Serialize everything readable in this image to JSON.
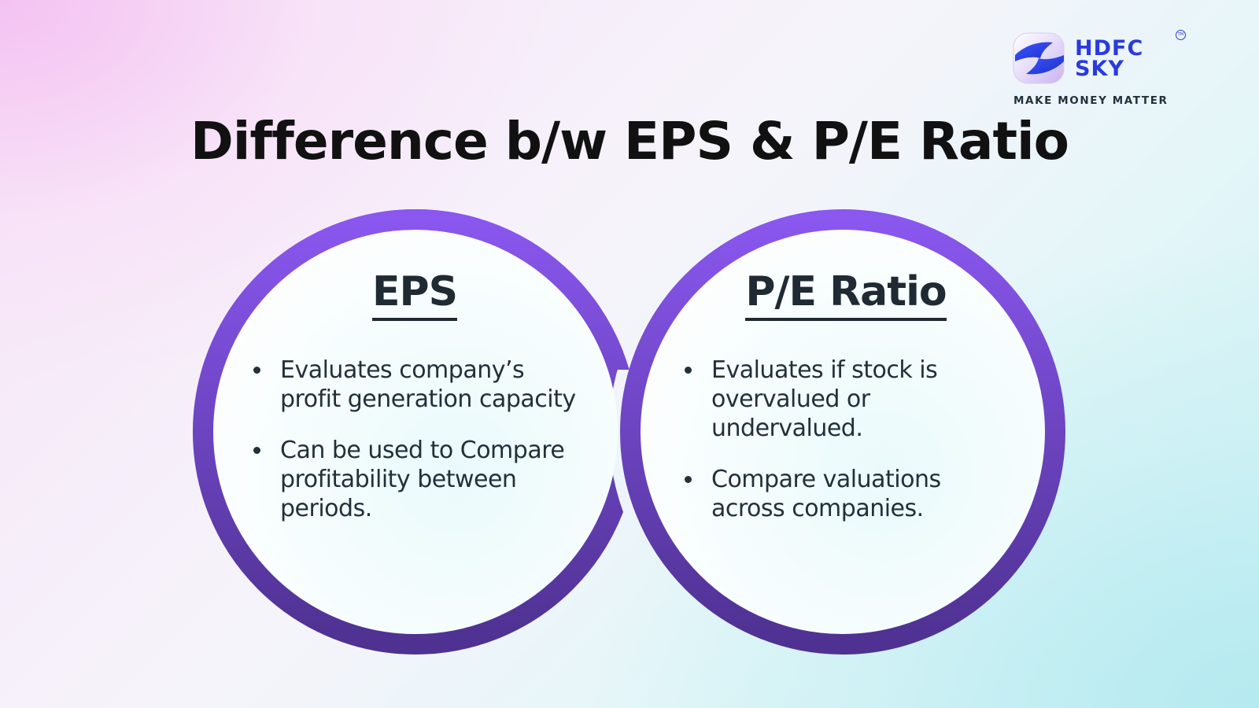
{
  "brand": {
    "name_line1": "HDFC",
    "name_line2": "SKY",
    "trademark": "TM",
    "tagline": "MAKE MONEY MATTER",
    "icon": "hdfc-sky-logo-icon",
    "colors": {
      "brand_blue": "#2a3adf",
      "ring_top": "#8a57ef",
      "ring_bottom": "#4e3191"
    }
  },
  "title": "Difference b/w EPS & P/E Ratio",
  "circles": [
    {
      "heading": "EPS",
      "points": [
        "Evaluates company’s profit generation capacity",
        "Can be used to Compare profitability between periods."
      ]
    },
    {
      "heading": "P/E Ratio",
      "points": [
        "Evaluates if stock is overvalued or undervalued.",
        "Compare valuations across companies."
      ]
    }
  ]
}
